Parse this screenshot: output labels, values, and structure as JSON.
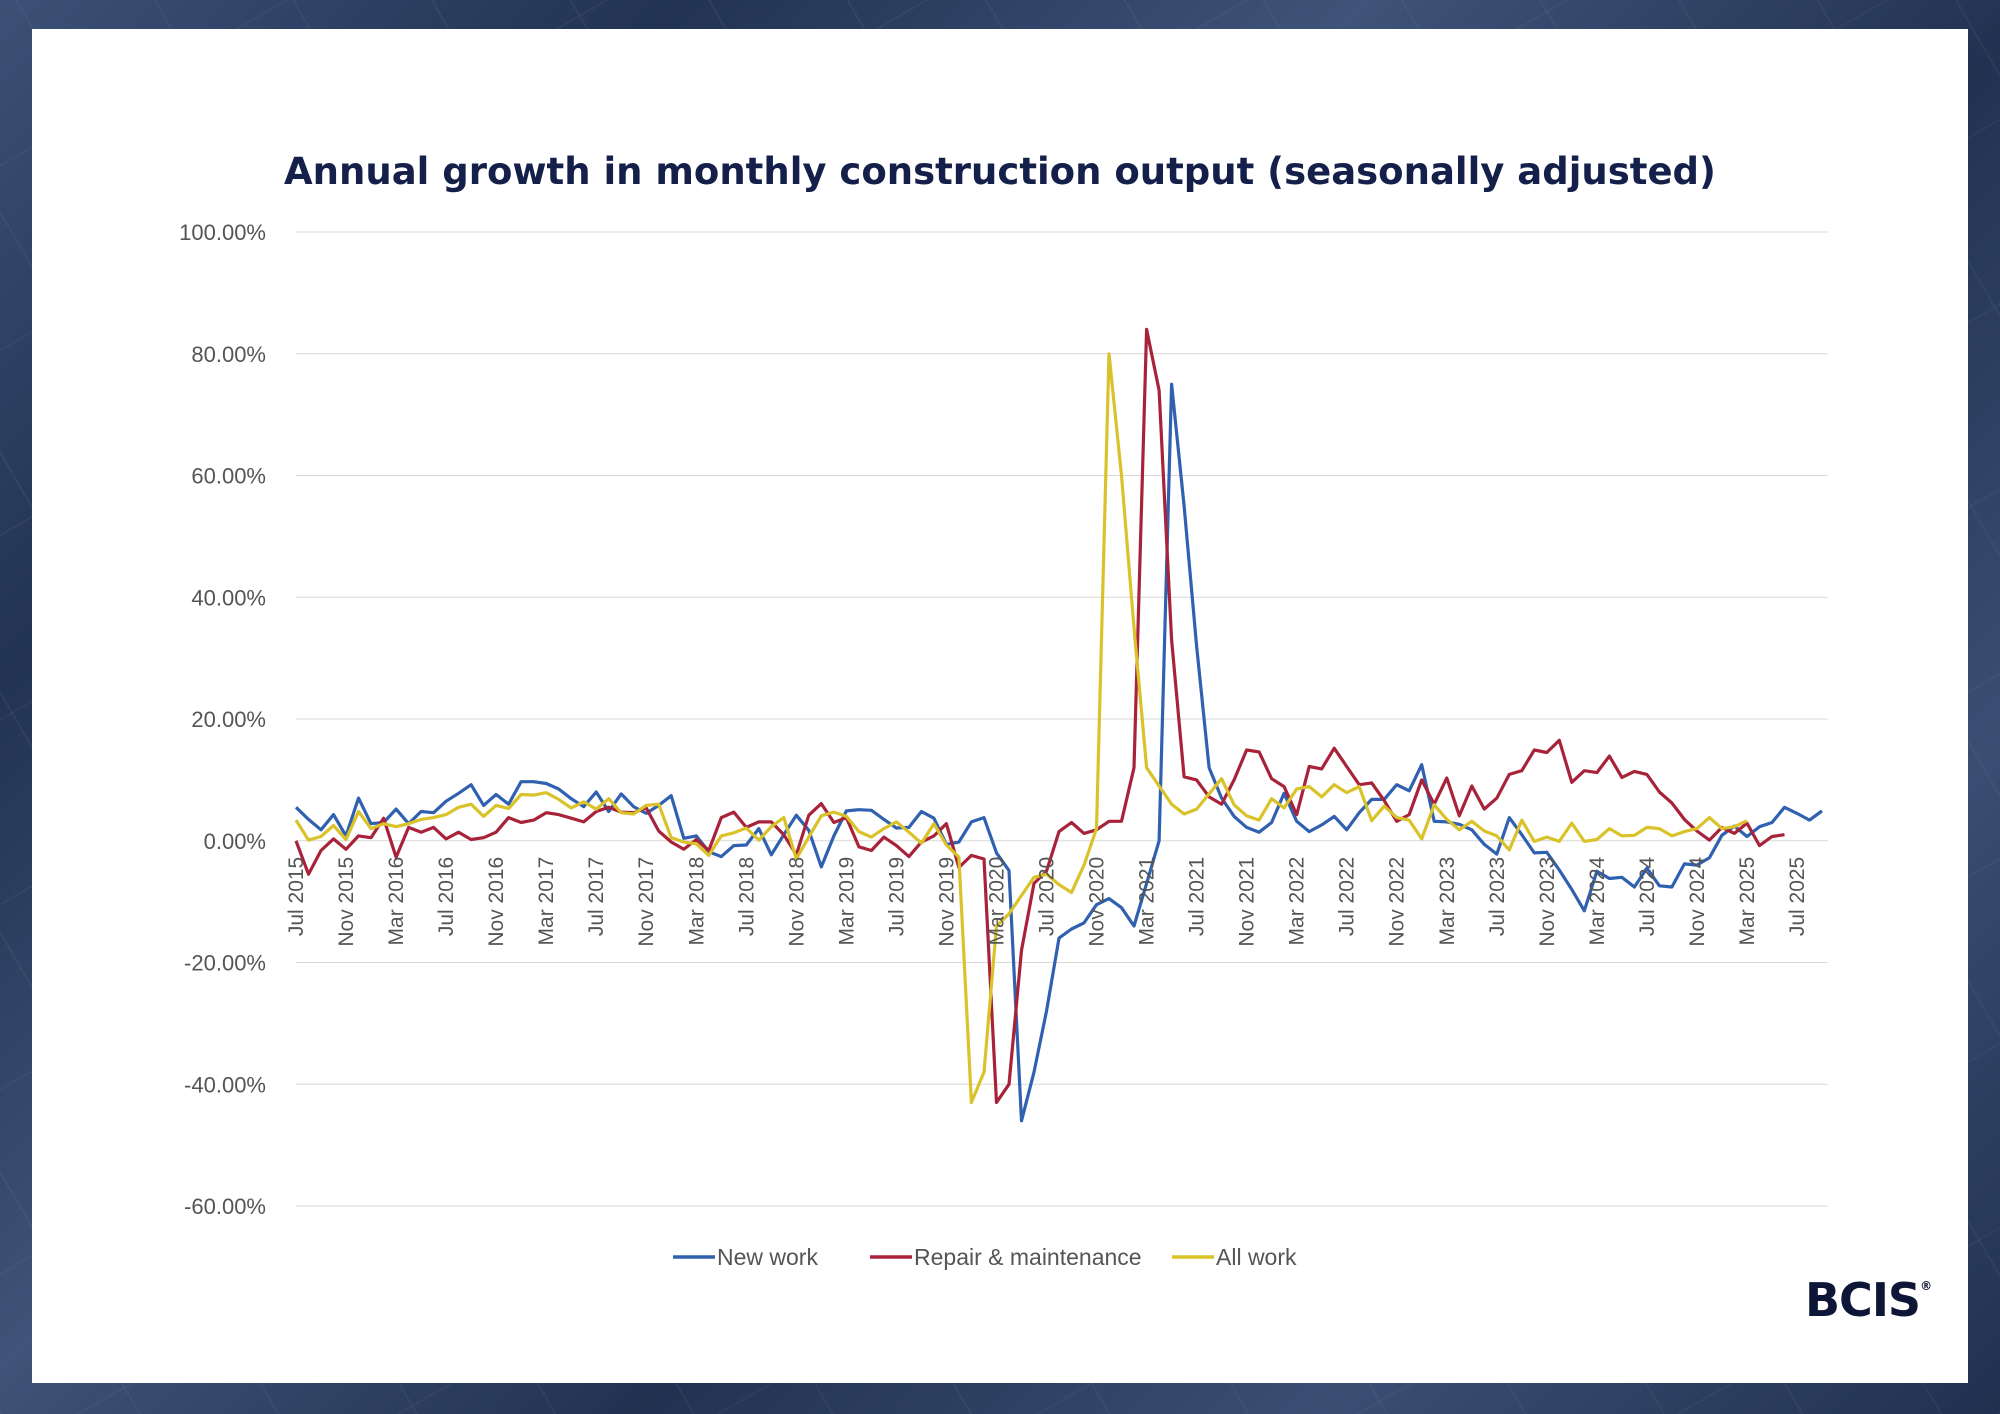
{
  "chart_data": {
    "type": "line",
    "title": "Annual growth in monthly construction output (seasonally adjusted)",
    "xlabel": "",
    "ylabel": "",
    "ylim": [
      -60,
      100
    ],
    "yticks": [
      "100.00%",
      "80.00%",
      "60.00%",
      "40.00%",
      "20.00%",
      "0.00%",
      "-20.00%",
      "-40.00%",
      "-60.00%"
    ],
    "ytick_values": [
      100,
      80,
      60,
      40,
      20,
      0,
      -20,
      -40,
      -60
    ],
    "x_start": "Jul 2015",
    "x_end": "Jul 2025",
    "xtick_labels": [
      "Jul 2015",
      "Nov 2015",
      "Mar 2016",
      "Jul 2016",
      "Nov 2016",
      "Mar 2017",
      "Jul 2017",
      "Nov 2017",
      "Mar 2018",
      "Jul 2018",
      "Nov 2018",
      "Mar 2019",
      "Jul 2019",
      "Nov 2019",
      "Mar 2020",
      "Jul 2020",
      "Nov 2020",
      "Mar 2021",
      "Jul 2021",
      "Nov 2021",
      "Mar 2022",
      "Jul 2022",
      "Nov 2022",
      "Mar 2023",
      "Jul 2023",
      "Nov 2023",
      "Mar 2024",
      "Jul 2024",
      "Nov 2024",
      "Mar 2025",
      "Jul 2025"
    ],
    "grid": true,
    "legend_position": "bottom",
    "series": [
      {
        "name": "New work",
        "color": "#3060b0",
        "values": [
          5.5,
          3.5,
          1.8,
          4.3,
          0.8,
          7,
          2.8,
          3,
          5.2,
          2.8,
          4.8,
          4.6,
          6.5,
          7.8,
          9.2,
          5.8,
          7.6,
          6,
          9.7,
          9.7,
          9.4,
          8.5,
          6.9,
          5.6,
          8,
          4.8,
          7.7,
          5.6,
          4.5,
          5.8,
          7.4,
          0.4,
          0.8,
          -1.8,
          -2.6,
          -0.8,
          -0.7,
          2,
          -2.3,
          1,
          4.2,
          1.7,
          -4.3,
          0.8,
          4.9,
          5.1,
          5,
          3.5,
          2.1,
          2.2,
          4.8,
          3.7,
          -0.6,
          -0.2,
          3.1,
          3.8,
          -2,
          -4.9,
          -46,
          -38,
          -28,
          -16,
          -14.5,
          -13.5,
          -10.5,
          -9.5,
          -11,
          -14,
          -7,
          0,
          75,
          55,
          32,
          12,
          7,
          4,
          2.2,
          1.4,
          3,
          7.8,
          3.2,
          1.5,
          2.6,
          4,
          1.8,
          4.6,
          6.8,
          6.8,
          9.2,
          8.2,
          12.5,
          3.2,
          3.1,
          2.7,
          1.8,
          -0.6,
          -2.2,
          3.8,
          1,
          -2,
          -1.9,
          -4.8,
          -8,
          -11.5,
          -5,
          -6.2,
          -6,
          -7.6,
          -4.5,
          -7.4,
          -7.6,
          -3.8,
          -4,
          -2.8,
          0.9,
          2.4,
          0.7,
          2.3,
          3,
          5.5,
          4.5,
          3.4,
          4.9
        ]
      },
      {
        "name": "Repair & maintenance",
        "color": "#a8233a",
        "values": [
          0,
          -5.5,
          -1.6,
          0.3,
          -1.4,
          0.8,
          0.5,
          3.7,
          -2.7,
          2.2,
          1.4,
          2.2,
          0.3,
          1.4,
          0.2,
          0.5,
          1.4,
          3.8,
          3,
          3.4,
          4.6,
          4.3,
          3.7,
          3.1,
          4.8,
          5.5,
          4.7,
          4.6,
          5.4,
          1.6,
          -0.2,
          -1.4,
          0.2,
          -1.6,
          3.8,
          4.7,
          2.2,
          3.1,
          3.1,
          1,
          -2.3,
          4.2,
          6.1,
          3,
          3.8,
          -1,
          -1.6,
          0.6,
          -0.8,
          -2.6,
          -0.2,
          0.8,
          2.8,
          -4.4,
          -2.4,
          -3,
          -43,
          -40,
          -18,
          -7,
          -5,
          1.5,
          3,
          1.2,
          1.8,
          3.2,
          3.2,
          12,
          84,
          74,
          33,
          10.5,
          10,
          7.2,
          6,
          10,
          14.9,
          14.6,
          10.2,
          8.9,
          4.3,
          12.2,
          11.8,
          15.2,
          12.2,
          9.2,
          9.5,
          6.6,
          3.2,
          4.3,
          10,
          6,
          10.3,
          4.1,
          9,
          5.2,
          7,
          10.9,
          11.5,
          14.9,
          14.5,
          16.5,
          9.6,
          11.5,
          11.2,
          13.9,
          10.4,
          11.4,
          10.9,
          8,
          6.2,
          3.5,
          1.6,
          0.1,
          2.2,
          1.2,
          2.9,
          -0.8,
          0.7,
          1
        ]
      },
      {
        "name": "All work",
        "color": "#d9c22a",
        "values": [
          3.4,
          0.1,
          0.7,
          2.5,
          0.2,
          4.8,
          2,
          2.8,
          2.3,
          2.8,
          3.5,
          3.8,
          4.3,
          5.5,
          6,
          4,
          5.8,
          5.3,
          7.6,
          7.5,
          7.9,
          6.8,
          5.4,
          6.4,
          5.2,
          6.9,
          4.6,
          4.4,
          5.8,
          6,
          0.5,
          -0.2,
          -0.5,
          -2.4,
          0.8,
          1.3,
          2.1,
          0.1,
          2.3,
          3.8,
          -3,
          0.6,
          4.1,
          4.7,
          4,
          1.5,
          0.6,
          2,
          3.1,
          1.4,
          -0.4,
          2.8,
          -0.7,
          -2.7,
          -43,
          -38,
          -14,
          -12,
          -9,
          -6,
          -5.5,
          -7.2,
          -8.5,
          -4,
          2,
          80,
          60,
          35,
          12,
          9,
          6,
          4.4,
          5.2,
          7.7,
          10.2,
          5.9,
          4.1,
          3.4,
          6.9,
          5.4,
          8.5,
          8.9,
          7.2,
          9.2,
          7.9,
          8.9,
          3.3,
          5.7,
          3.8,
          3.4,
          0.3,
          5.9,
          3.5,
          1.8,
          3.2,
          1.6,
          0.8,
          -1.5,
          3.4,
          -0.1,
          0.6,
          -0.1,
          2.9,
          -0.1,
          0.2,
          2,
          0.8,
          0.9,
          2.2,
          2,
          0.8,
          1.5,
          2,
          3.8,
          2,
          2.3,
          3.3
        ]
      }
    ]
  },
  "logo": {
    "text": "BCIS",
    "mark": "®"
  }
}
